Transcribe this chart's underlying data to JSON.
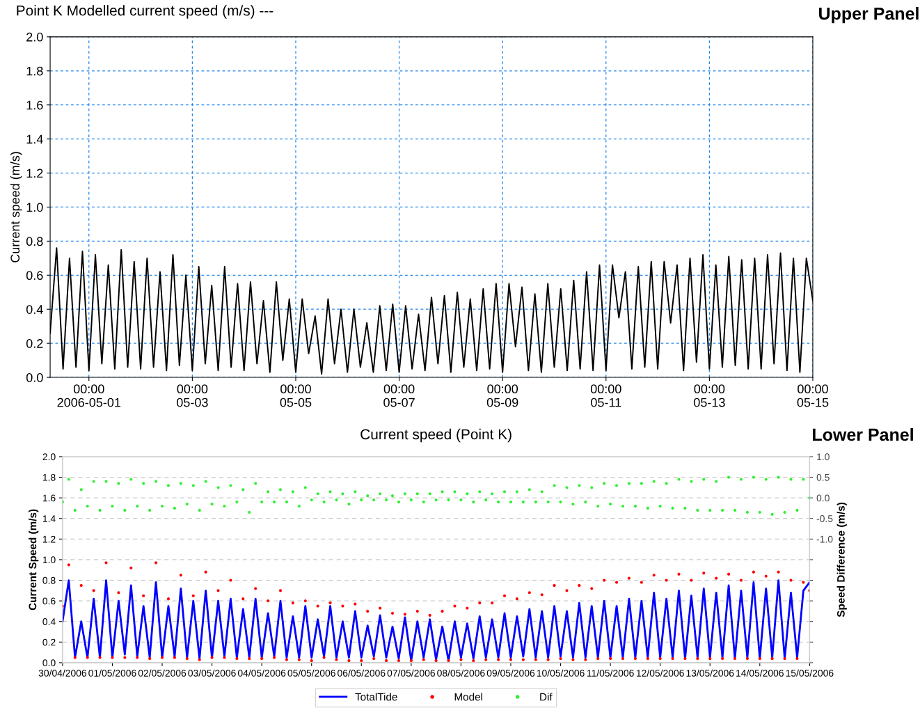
{
  "chart_data": [
    {
      "type": "line",
      "title": "Point K Modelled current speed (m/s) ---",
      "ylabel": "Current speed (m/s)",
      "annotations": [
        "Upper Panel"
      ],
      "x": [
        "2006-04-30T06:00",
        "2006-04-30T09:00",
        "2006-04-30T12:00",
        "2006-04-30T15:00",
        "2006-04-30T18:00",
        "2006-04-30T21:00",
        "2006-05-01T00:00",
        "2006-05-01T03:00",
        "2006-05-01T06:00",
        "2006-05-01T09:00",
        "2006-05-01T12:00",
        "2006-05-01T15:00",
        "2006-05-01T18:00",
        "2006-05-01T21:00",
        "2006-05-02T00:00",
        "2006-05-02T03:00",
        "2006-05-02T06:00",
        "2006-05-02T09:00",
        "2006-05-02T12:00",
        "2006-05-02T15:00",
        "2006-05-02T18:00",
        "2006-05-02T21:00",
        "2006-05-03T00:00",
        "2006-05-03T03:00",
        "2006-05-03T06:00",
        "2006-05-03T09:00",
        "2006-05-03T12:00",
        "2006-05-03T15:00",
        "2006-05-03T18:00",
        "2006-05-03T21:00",
        "2006-05-04T00:00",
        "2006-05-04T03:00",
        "2006-05-04T06:00",
        "2006-05-04T09:00",
        "2006-05-04T12:00",
        "2006-05-04T15:00",
        "2006-05-04T18:00",
        "2006-05-04T21:00",
        "2006-05-05T00:00",
        "2006-05-05T03:00",
        "2006-05-05T06:00",
        "2006-05-05T09:00",
        "2006-05-05T12:00",
        "2006-05-05T15:00",
        "2006-05-05T18:00",
        "2006-05-05T21:00",
        "2006-05-06T00:00",
        "2006-05-06T03:00",
        "2006-05-06T06:00",
        "2006-05-06T09:00",
        "2006-05-06T12:00",
        "2006-05-06T15:00",
        "2006-05-06T18:00",
        "2006-05-06T21:00",
        "2006-05-07T00:00",
        "2006-05-07T03:00",
        "2006-05-07T06:00",
        "2006-05-07T09:00",
        "2006-05-07T12:00",
        "2006-05-07T15:00",
        "2006-05-07T18:00",
        "2006-05-07T21:00",
        "2006-05-08T00:00",
        "2006-05-08T03:00",
        "2006-05-08T06:00",
        "2006-05-08T09:00",
        "2006-05-08T12:00",
        "2006-05-08T15:00",
        "2006-05-08T18:00",
        "2006-05-08T21:00",
        "2006-05-09T00:00",
        "2006-05-09T03:00",
        "2006-05-09T06:00",
        "2006-05-09T09:00",
        "2006-05-09T12:00",
        "2006-05-09T15:00",
        "2006-05-09T18:00",
        "2006-05-09T21:00",
        "2006-05-10T00:00",
        "2006-05-10T03:00",
        "2006-05-10T06:00",
        "2006-05-10T09:00",
        "2006-05-10T12:00",
        "2006-05-10T15:00",
        "2006-05-10T18:00",
        "2006-05-10T21:00",
        "2006-05-11T00:00",
        "2006-05-11T03:00",
        "2006-05-11T06:00",
        "2006-05-11T09:00",
        "2006-05-11T12:00",
        "2006-05-11T15:00",
        "2006-05-11T18:00",
        "2006-05-11T21:00",
        "2006-05-12T00:00",
        "2006-05-12T03:00",
        "2006-05-12T06:00",
        "2006-05-12T09:00",
        "2006-05-12T12:00",
        "2006-05-12T15:00",
        "2006-05-12T18:00",
        "2006-05-12T21:00",
        "2006-05-13T00:00",
        "2006-05-13T03:00",
        "2006-05-13T06:00",
        "2006-05-13T09:00",
        "2006-05-13T12:00",
        "2006-05-13T15:00",
        "2006-05-13T18:00",
        "2006-05-13T21:00",
        "2006-05-14T00:00",
        "2006-05-14T03:00",
        "2006-05-14T06:00",
        "2006-05-14T09:00",
        "2006-05-14T12:00",
        "2006-05-14T15:00",
        "2006-05-14T18:00",
        "2006-05-14T21:00",
        "2006-05-15T00:00"
      ],
      "series": [
        {
          "color": "#000000",
          "values": [
            0.26,
            0.76,
            0.05,
            0.7,
            0.06,
            0.74,
            0.04,
            0.72,
            0.08,
            0.66,
            0.05,
            0.75,
            0.06,
            0.68,
            0.05,
            0.7,
            0.06,
            0.62,
            0.04,
            0.72,
            0.07,
            0.6,
            0.04,
            0.65,
            0.08,
            0.54,
            0.04,
            0.65,
            0.06,
            0.55,
            0.04,
            0.56,
            0.08,
            0.45,
            0.03,
            0.56,
            0.1,
            0.46,
            0.03,
            0.46,
            0.14,
            0.36,
            0.02,
            0.46,
            0.08,
            0.4,
            0.03,
            0.4,
            0.06,
            0.32,
            0.03,
            0.42,
            0.04,
            0.43,
            0.03,
            0.42,
            0.05,
            0.37,
            0.04,
            0.47,
            0.08,
            0.48,
            0.03,
            0.5,
            0.06,
            0.46,
            0.04,
            0.52,
            0.05,
            0.55,
            0.03,
            0.55,
            0.18,
            0.53,
            0.04,
            0.49,
            0.03,
            0.55,
            0.06,
            0.52,
            0.04,
            0.57,
            0.05,
            0.62,
            0.04,
            0.66,
            0.04,
            0.66,
            0.35,
            0.62,
            0.05,
            0.65,
            0.06,
            0.68,
            0.05,
            0.68,
            0.32,
            0.66,
            0.04,
            0.7,
            0.09,
            0.72,
            0.05,
            0.66,
            0.06,
            0.71,
            0.07,
            0.69,
            0.05,
            0.7,
            0.05,
            0.72,
            0.08,
            0.73,
            0.04,
            0.7,
            0.03,
            0.7,
            0.45
          ]
        }
      ],
      "xlim": [
        "2006-04-30T06:00",
        "2006-05-15T00:00"
      ],
      "xticks": [
        {
          "value": "2006-05-01T00:00",
          "label": "00:00\n2006-05-01"
        },
        {
          "value": "2006-05-03T00:00",
          "label": "00:00\n05-03"
        },
        {
          "value": "2006-05-05T00:00",
          "label": "00:00\n05-05"
        },
        {
          "value": "2006-05-07T00:00",
          "label": "00:00\n05-07"
        },
        {
          "value": "2006-05-09T00:00",
          "label": "00:00\n05-09"
        },
        {
          "value": "2006-05-11T00:00",
          "label": "00:00\n05-11"
        },
        {
          "value": "2006-05-13T00:00",
          "label": "00:00\n05-13"
        },
        {
          "value": "2006-05-15T00:00",
          "label": "00:00\n05-15"
        }
      ],
      "ylim": [
        0,
        2.0
      ],
      "yticks": [
        {
          "value": 0,
          "label": "0.0"
        },
        {
          "value": 0.2,
          "label": "0.2"
        },
        {
          "value": 0.4,
          "label": "0.4"
        },
        {
          "value": 0.6,
          "label": "0.6"
        },
        {
          "value": 0.8,
          "label": "0.8"
        },
        {
          "value": 1.0,
          "label": "1.0"
        },
        {
          "value": 1.2,
          "label": "1.2"
        },
        {
          "value": 1.4,
          "label": "1.4"
        },
        {
          "value": 1.6,
          "label": "1.6"
        },
        {
          "value": 1.8,
          "label": "1.8"
        },
        {
          "value": 2.0,
          "label": "2.0"
        }
      ],
      "grid": true,
      "legend": false,
      "marker": "none",
      "line_style": "solid"
    },
    {
      "type": "line",
      "title": "Current speed (Point K)",
      "ylabel": "Current Speed (m/s)",
      "y2label": "Speed Difference (m/s)",
      "annotations": [
        "Lower Panel"
      ],
      "x": [
        "2006-04-30T00:00",
        "2006-04-30T03:00",
        "2006-04-30T06:00",
        "2006-04-30T09:00",
        "2006-04-30T12:00",
        "2006-04-30T15:00",
        "2006-04-30T18:00",
        "2006-04-30T21:00",
        "2006-05-01T00:00",
        "2006-05-01T03:00",
        "2006-05-01T06:00",
        "2006-05-01T09:00",
        "2006-05-01T12:00",
        "2006-05-01T15:00",
        "2006-05-01T18:00",
        "2006-05-01T21:00",
        "2006-05-02T00:00",
        "2006-05-02T03:00",
        "2006-05-02T06:00",
        "2006-05-02T09:00",
        "2006-05-02T12:00",
        "2006-05-02T15:00",
        "2006-05-02T18:00",
        "2006-05-02T21:00",
        "2006-05-03T00:00",
        "2006-05-03T03:00",
        "2006-05-03T06:00",
        "2006-05-03T09:00",
        "2006-05-03T12:00",
        "2006-05-03T15:00",
        "2006-05-03T18:00",
        "2006-05-03T21:00",
        "2006-05-04T00:00",
        "2006-05-04T03:00",
        "2006-05-04T06:00",
        "2006-05-04T09:00",
        "2006-05-04T12:00",
        "2006-05-04T15:00",
        "2006-05-04T18:00",
        "2006-05-04T21:00",
        "2006-05-05T00:00",
        "2006-05-05T03:00",
        "2006-05-05T06:00",
        "2006-05-05T09:00",
        "2006-05-05T12:00",
        "2006-05-05T15:00",
        "2006-05-05T18:00",
        "2006-05-05T21:00",
        "2006-05-06T00:00",
        "2006-05-06T03:00",
        "2006-05-06T06:00",
        "2006-05-06T09:00",
        "2006-05-06T12:00",
        "2006-05-06T15:00",
        "2006-05-06T18:00",
        "2006-05-06T21:00",
        "2006-05-07T00:00",
        "2006-05-07T03:00",
        "2006-05-07T06:00",
        "2006-05-07T09:00",
        "2006-05-07T12:00",
        "2006-05-07T15:00",
        "2006-05-07T18:00",
        "2006-05-07T21:00",
        "2006-05-08T00:00",
        "2006-05-08T03:00",
        "2006-05-08T06:00",
        "2006-05-08T09:00",
        "2006-05-08T12:00",
        "2006-05-08T15:00",
        "2006-05-08T18:00",
        "2006-05-08T21:00",
        "2006-05-09T00:00",
        "2006-05-09T03:00",
        "2006-05-09T06:00",
        "2006-05-09T09:00",
        "2006-05-09T12:00",
        "2006-05-09T15:00",
        "2006-05-09T18:00",
        "2006-05-09T21:00",
        "2006-05-10T00:00",
        "2006-05-10T03:00",
        "2006-05-10T06:00",
        "2006-05-10T09:00",
        "2006-05-10T12:00",
        "2006-05-10T15:00",
        "2006-05-10T18:00",
        "2006-05-10T21:00",
        "2006-05-11T00:00",
        "2006-05-11T03:00",
        "2006-05-11T06:00",
        "2006-05-11T09:00",
        "2006-05-11T12:00",
        "2006-05-11T15:00",
        "2006-05-11T18:00",
        "2006-05-11T21:00",
        "2006-05-12T00:00",
        "2006-05-12T03:00",
        "2006-05-12T06:00",
        "2006-05-12T09:00",
        "2006-05-12T12:00",
        "2006-05-12T15:00",
        "2006-05-12T18:00",
        "2006-05-12T21:00",
        "2006-05-13T00:00",
        "2006-05-13T03:00",
        "2006-05-13T06:00",
        "2006-05-13T09:00",
        "2006-05-13T12:00",
        "2006-05-13T15:00",
        "2006-05-13T18:00",
        "2006-05-13T21:00",
        "2006-05-14T00:00",
        "2006-05-14T03:00",
        "2006-05-14T06:00",
        "2006-05-14T09:00",
        "2006-05-14T12:00",
        "2006-05-14T15:00",
        "2006-05-14T18:00",
        "2006-05-14T21:00",
        "2006-05-15T00:00"
      ],
      "series": [
        {
          "name": "TotalTide",
          "type": "line",
          "color": "#0000ff",
          "line_style": "solid",
          "marker": "none",
          "values": [
            0.4,
            0.8,
            0.05,
            0.4,
            0.05,
            0.62,
            0.05,
            0.8,
            0.05,
            0.6,
            0.08,
            0.75,
            0.06,
            0.55,
            0.05,
            0.78,
            0.05,
            0.55,
            0.06,
            0.72,
            0.05,
            0.6,
            0.04,
            0.7,
            0.05,
            0.6,
            0.06,
            0.62,
            0.05,
            0.52,
            0.05,
            0.62,
            0.05,
            0.48,
            0.06,
            0.6,
            0.05,
            0.45,
            0.05,
            0.55,
            0.05,
            0.42,
            0.06,
            0.55,
            0.05,
            0.4,
            0.05,
            0.5,
            0.05,
            0.36,
            0.06,
            0.46,
            0.05,
            0.35,
            0.04,
            0.44,
            0.02,
            0.4,
            0.05,
            0.42,
            0.03,
            0.35,
            0.02,
            0.4,
            0.05,
            0.38,
            0.04,
            0.45,
            0.05,
            0.42,
            0.05,
            0.48,
            0.05,
            0.45,
            0.06,
            0.52,
            0.05,
            0.5,
            0.05,
            0.55,
            0.06,
            0.5,
            0.05,
            0.58,
            0.05,
            0.55,
            0.05,
            0.6,
            0.05,
            0.55,
            0.05,
            0.62,
            0.05,
            0.6,
            0.05,
            0.68,
            0.05,
            0.62,
            0.05,
            0.7,
            0.04,
            0.65,
            0.05,
            0.72,
            0.05,
            0.68,
            0.05,
            0.75,
            0.04,
            0.7,
            0.05,
            0.78,
            0.04,
            0.72,
            0.05,
            0.8,
            0.04,
            0.68,
            0.05,
            0.7,
            0.78
          ]
        },
        {
          "name": "Model",
          "type": "scatter",
          "color": "#ff0000",
          "marker": "circle",
          "values": [
            0.55,
            0.95,
            0.05,
            0.75,
            0.05,
            0.7,
            0.05,
            0.97,
            0.05,
            0.68,
            0.05,
            0.92,
            0.05,
            0.65,
            0.04,
            0.97,
            0.05,
            0.62,
            0.05,
            0.85,
            0.04,
            0.65,
            0.03,
            0.88,
            0.05,
            0.7,
            0.05,
            0.8,
            0.04,
            0.62,
            0.04,
            0.72,
            0.04,
            0.6,
            0.05,
            0.7,
            0.03,
            0.58,
            0.03,
            0.6,
            0.02,
            0.55,
            0.05,
            0.58,
            0.03,
            0.55,
            0.02,
            0.57,
            0.02,
            0.5,
            0.04,
            0.53,
            0.02,
            0.48,
            0.02,
            0.47,
            0.02,
            0.5,
            0.03,
            0.46,
            0.02,
            0.5,
            0.02,
            0.55,
            0.03,
            0.53,
            0.02,
            0.58,
            0.03,
            0.58,
            0.03,
            0.65,
            0.03,
            0.62,
            0.03,
            0.68,
            0.03,
            0.66,
            0.03,
            0.75,
            0.04,
            0.7,
            0.03,
            0.75,
            0.03,
            0.72,
            0.04,
            0.8,
            0.04,
            0.78,
            0.04,
            0.82,
            0.04,
            0.78,
            0.04,
            0.85,
            0.04,
            0.8,
            0.04,
            0.86,
            0.04,
            0.8,
            0.04,
            0.87,
            0.04,
            0.82,
            0.04,
            0.86,
            0.04,
            0.8,
            0.04,
            0.88,
            0.04,
            0.84,
            0.04,
            0.88,
            0.04,
            0.8,
            0.04,
            0.78,
            0.7
          ]
        },
        {
          "name": "Dif",
          "type": "scatter",
          "axis": "y2",
          "color": "#33ee33",
          "marker": "circle",
          "values": [
            -0.1,
            0.45,
            -0.3,
            0.2,
            -0.2,
            0.4,
            -0.3,
            0.4,
            -0.2,
            0.35,
            -0.3,
            0.45,
            -0.2,
            0.35,
            -0.3,
            0.4,
            -0.2,
            0.3,
            -0.25,
            0.35,
            -0.15,
            0.3,
            -0.3,
            0.4,
            -0.15,
            0.25,
            -0.2,
            0.3,
            -0.1,
            0.2,
            -0.35,
            0.35,
            -0.1,
            0.15,
            -0.1,
            0.2,
            -0.1,
            0.15,
            -0.2,
            0.25,
            -0.05,
            0.1,
            -0.1,
            0.15,
            -0.05,
            0.1,
            -0.15,
            0.15,
            -0.05,
            0.05,
            -0.05,
            0.1,
            -0.05,
            0.05,
            -0.1,
            0.1,
            -0.05,
            0.1,
            -0.1,
            0.1,
            -0.05,
            0.15,
            -0.05,
            0.15,
            -0.05,
            0.1,
            -0.1,
            0.15,
            -0.05,
            0.1,
            -0.1,
            0.15,
            -0.1,
            0.15,
            -0.1,
            0.2,
            -0.1,
            0.15,
            -0.1,
            0.3,
            -0.1,
            0.25,
            -0.15,
            0.3,
            -0.1,
            0.25,
            -0.2,
            0.35,
            -0.15,
            0.3,
            -0.2,
            0.35,
            -0.2,
            0.35,
            -0.25,
            0.4,
            -0.2,
            0.35,
            -0.25,
            0.45,
            -0.25,
            0.4,
            -0.3,
            0.45,
            -0.3,
            0.4,
            -0.3,
            0.5,
            -0.3,
            0.45,
            -0.35,
            0.5,
            -0.35,
            0.45,
            -0.4,
            0.5,
            -0.35,
            0.45,
            -0.3,
            0.45,
            0.0
          ]
        }
      ],
      "xlim": [
        "2006-04-30",
        "2006-05-15"
      ],
      "xticks": [
        {
          "value": "2006-04-30",
          "label": "30/04/2006"
        },
        {
          "value": "2006-05-01",
          "label": "01/05/2006"
        },
        {
          "value": "2006-05-02",
          "label": "02/05/2006"
        },
        {
          "value": "2006-05-03",
          "label": "03/05/2006"
        },
        {
          "value": "2006-05-04",
          "label": "04/05/2006"
        },
        {
          "value": "2006-05-05",
          "label": "05/05/2006"
        },
        {
          "value": "2006-05-06",
          "label": "06/05/2006"
        },
        {
          "value": "2006-05-07",
          "label": "07/05/2006"
        },
        {
          "value": "2006-05-08",
          "label": "08/05/2006"
        },
        {
          "value": "2006-05-09",
          "label": "09/05/2006"
        },
        {
          "value": "2006-05-10",
          "label": "10/05/2006"
        },
        {
          "value": "2006-05-11",
          "label": "11/05/2006"
        },
        {
          "value": "2006-05-12",
          "label": "12/05/2006"
        },
        {
          "value": "2006-05-13",
          "label": "13/05/2006"
        },
        {
          "value": "2006-05-14",
          "label": "14/05/2006"
        },
        {
          "value": "2006-05-15",
          "label": "15/05/2006"
        }
      ],
      "ylim": [
        0,
        2.0
      ],
      "yticks": [
        {
          "value": 0,
          "label": "0.0"
        },
        {
          "value": 0.2,
          "label": "0.2"
        },
        {
          "value": 0.4,
          "label": "0.4"
        },
        {
          "value": 0.6,
          "label": "0.6"
        },
        {
          "value": 0.8,
          "label": "0.8"
        },
        {
          "value": 1.0,
          "label": "1.0"
        },
        {
          "value": 1.2,
          "label": "1.2"
        },
        {
          "value": 1.4,
          "label": "1.4"
        },
        {
          "value": 1.6,
          "label": "1.6"
        },
        {
          "value": 1.8,
          "label": "1.8"
        },
        {
          "value": 2.0,
          "label": "2.0"
        }
      ],
      "y2lim": [
        -4.0,
        1.0
      ],
      "y2ticks": [
        {
          "value": -4.0,
          "label": null
        },
        {
          "value": -3.5,
          "label": null
        },
        {
          "value": -3.0,
          "label": null
        },
        {
          "value": -2.5,
          "label": null
        },
        {
          "value": -2.0,
          "label": null
        },
        {
          "value": -1.5,
          "label": null
        },
        {
          "value": -1.0,
          "label": "-1.0"
        },
        {
          "value": -0.5,
          "label": "-0.5"
        },
        {
          "value": 0.0,
          "label": "0.0"
        },
        {
          "value": 0.5,
          "label": "0.5"
        },
        {
          "value": 1.0,
          "label": "1.0"
        }
      ],
      "grid": "y",
      "legend": "bottom"
    }
  ]
}
